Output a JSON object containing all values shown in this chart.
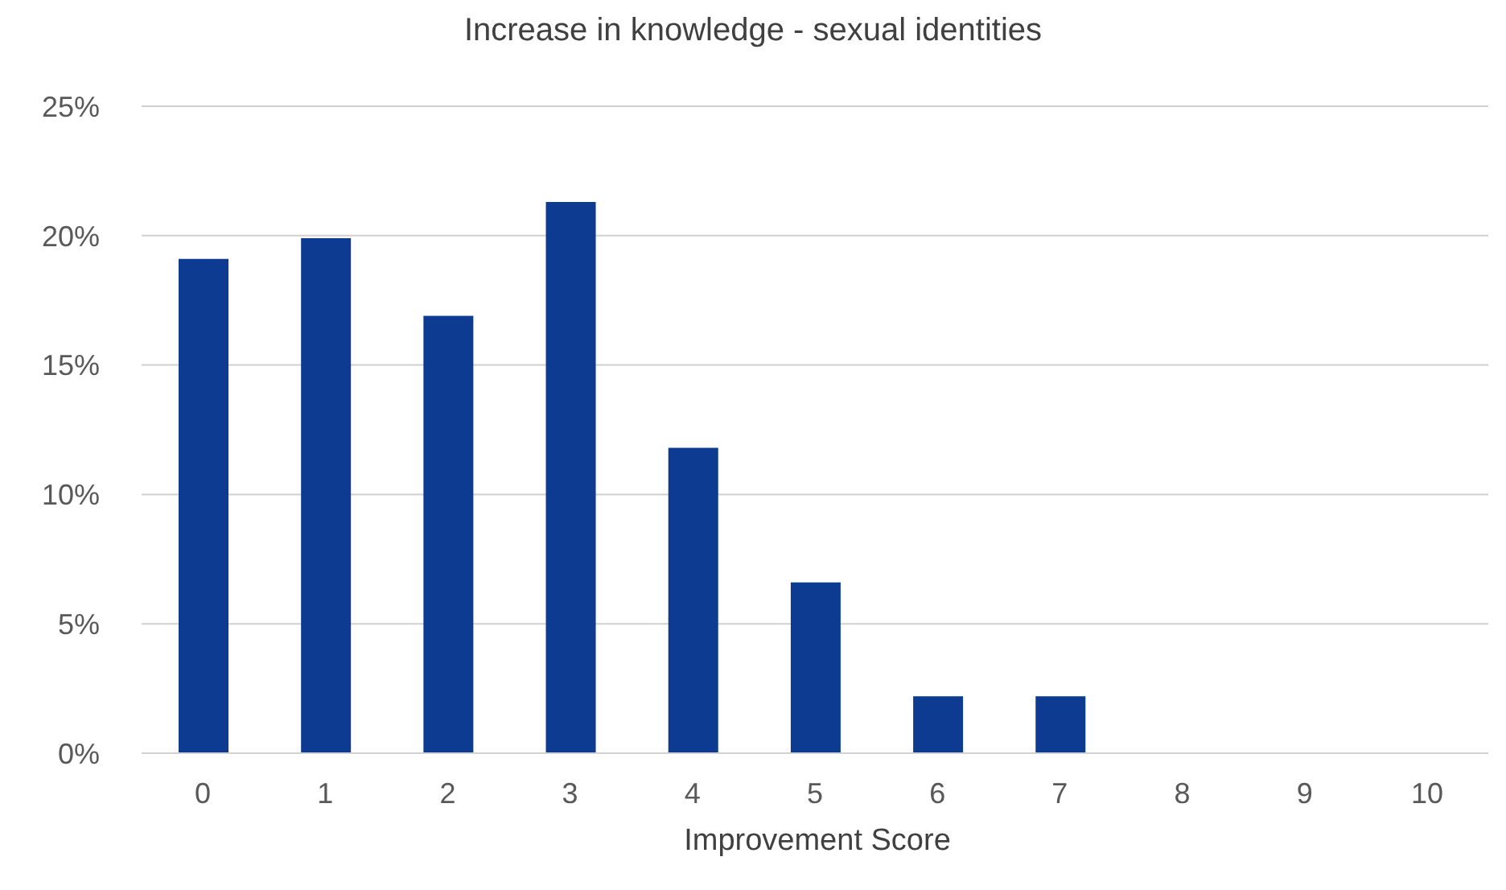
{
  "chart_data": {
    "type": "bar",
    "title": "Increase in knowledge - sexual identities",
    "xlabel": "Improvement Score",
    "categories": [
      "0",
      "1",
      "2",
      "3",
      "4",
      "5",
      "6",
      "7",
      "8",
      "9",
      "10"
    ],
    "values": [
      19.1,
      19.9,
      16.9,
      21.3,
      11.8,
      6.6,
      2.2,
      2.2,
      0,
      0,
      0
    ],
    "color": "#0c3b91",
    "ylim": [
      0,
      25
    ],
    "yticks": [
      {
        "value": 0,
        "label": "0%"
      },
      {
        "value": 5,
        "label": "5%"
      },
      {
        "value": 10,
        "label": "10%"
      },
      {
        "value": 15,
        "label": "15%"
      },
      {
        "value": 20,
        "label": "20%"
      },
      {
        "value": 25,
        "label": "25%"
      }
    ],
    "grid": "y",
    "legend": false
  }
}
